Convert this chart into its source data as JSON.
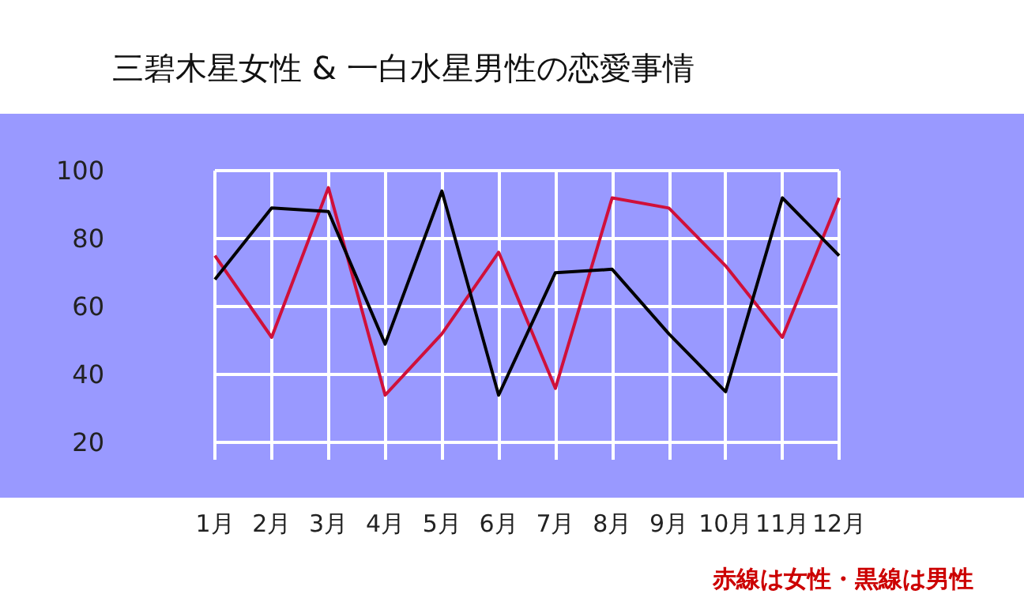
{
  "chart_data": {
    "type": "line",
    "title": "三碧木星女性 & 一白水星男性の恋愛事情",
    "categories": [
      "1月",
      "2月",
      "3月",
      "4月",
      "5月",
      "6月",
      "7月",
      "8月",
      "9月",
      "10月",
      "11月",
      "12月"
    ],
    "series": [
      {
        "color": "#d0103a",
        "values": [
          75,
          51,
          95,
          34,
          52,
          76,
          36,
          92,
          89,
          72,
          51,
          92
        ]
      },
      {
        "color": "#000000",
        "values": [
          68,
          89,
          88,
          49,
          94,
          34,
          70,
          71,
          52,
          35,
          92,
          75
        ]
      }
    ],
    "ylim": [
      15,
      100
    ],
    "yticks": [
      20,
      40,
      60,
      80,
      100
    ],
    "grid": true,
    "marker": "none",
    "line_style": "solid",
    "annotations": [
      "赤線は女性・黒線は男性"
    ]
  }
}
